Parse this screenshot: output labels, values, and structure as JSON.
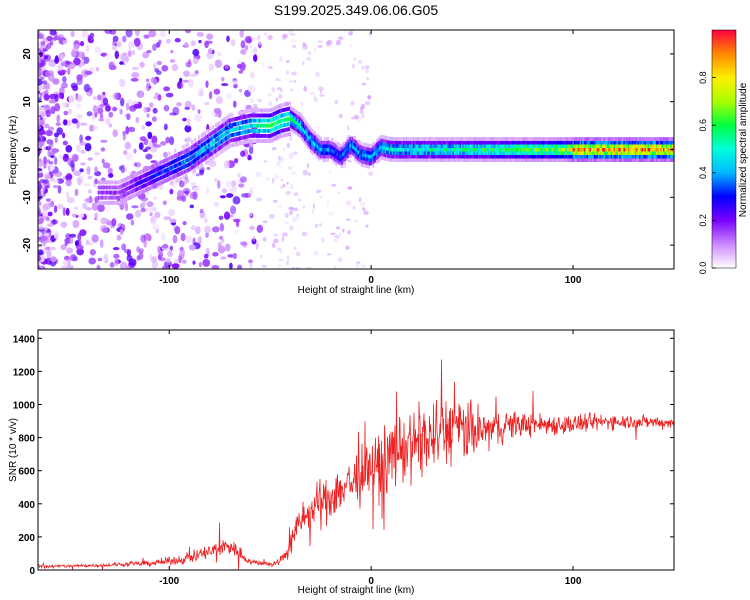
{
  "page": {
    "title": "S199.2025.349.06.06.G05"
  },
  "chart_data": [
    {
      "type": "heatmap",
      "title": "S199.2025.349.06.06.G05",
      "xlabel": "Height of straight line (km)",
      "ylabel": "Frequency (Hz)",
      "xlim": [
        -165,
        150
      ],
      "ylim": [
        -25,
        25
      ],
      "x_ticks": [
        -100,
        0,
        100
      ],
      "x_tick_labels": [
        "-100",
        "0",
        "100"
      ],
      "y_ticks": [
        -20,
        -10,
        0,
        10,
        20
      ],
      "y_tick_labels": [
        "-20",
        "-10",
        "0",
        "10",
        "20"
      ],
      "colorbar": {
        "label": "Normalized spectral amplitude",
        "range": [
          0,
          1
        ],
        "ticks": [
          0.0,
          0.2,
          0.4,
          0.6,
          0.8
        ],
        "tick_labels": [
          "0.0",
          "0.2",
          "0.4",
          "0.6",
          "0.8"
        ],
        "colors": [
          "#ffffff",
          "#cc88ff",
          "#7a00ff",
          "#0000ff",
          "#00b8ff",
          "#00ffdd",
          "#00ff40",
          "#aaff00",
          "#ffee00",
          "#ff8800",
          "#ff0040"
        ]
      },
      "ridge": {
        "x": [
          -125,
          -110,
          -100,
          -90,
          -80,
          -70,
          -60,
          -50,
          -45,
          -40,
          -35,
          -30,
          -25,
          -20,
          -15,
          -10,
          -5,
          0,
          5,
          10,
          20,
          30,
          40,
          50,
          60,
          70,
          80,
          90,
          100,
          150
        ],
        "freq": [
          -9,
          -6,
          -4,
          -2,
          1,
          4,
          5,
          5,
          6,
          6.5,
          5,
          2,
          0,
          0,
          -1.5,
          1,
          -1,
          -1.5,
          0.5,
          0,
          0,
          0,
          0,
          0,
          0,
          0,
          0,
          0,
          0,
          0
        ],
        "amplitude": [
          0.18,
          0.3,
          0.35,
          0.4,
          0.45,
          0.45,
          0.5,
          0.6,
          0.65,
          0.7,
          0.6,
          0.55,
          0.5,
          0.45,
          0.45,
          0.5,
          0.5,
          0.5,
          0.55,
          0.6,
          0.6,
          0.65,
          0.65,
          0.7,
          0.7,
          0.75,
          0.8,
          0.8,
          0.95,
          0.95
        ]
      }
    },
    {
      "type": "line",
      "xlabel": "Height of straight line (km)",
      "ylabel": "SNR (10 * v/v)",
      "xlim": [
        -165,
        150
      ],
      "ylim": [
        0,
        1450
      ],
      "x_ticks": [
        -100,
        0,
        100
      ],
      "x_tick_labels": [
        "-100",
        "0",
        "100"
      ],
      "y_ticks": [
        0,
        200,
        400,
        600,
        800,
        1000,
        1200,
        1400
      ],
      "y_tick_labels": [
        "0",
        "200",
        "400",
        "600",
        "800",
        "1000",
        "1200",
        "1400"
      ],
      "color": "#ee2222",
      "envelope": {
        "x": [
          -165,
          -130,
          -110,
          -95,
          -80,
          -70,
          -65,
          -60,
          -50,
          -45,
          -40,
          -35,
          -30,
          -20,
          -10,
          0,
          10,
          20,
          30,
          40,
          50,
          60,
          70,
          80,
          100,
          120,
          150
        ],
        "mean": [
          20,
          30,
          40,
          60,
          110,
          150,
          100,
          50,
          35,
          50,
          150,
          300,
          350,
          450,
          530,
          600,
          700,
          760,
          800,
          860,
          830,
          850,
          880,
          880,
          880,
          900,
          890
        ],
        "spread": [
          15,
          15,
          25,
          40,
          70,
          90,
          60,
          25,
          20,
          40,
          100,
          150,
          180,
          220,
          250,
          280,
          300,
          320,
          330,
          320,
          250,
          160,
          130,
          100,
          90,
          70,
          50
        ]
      }
    }
  ]
}
